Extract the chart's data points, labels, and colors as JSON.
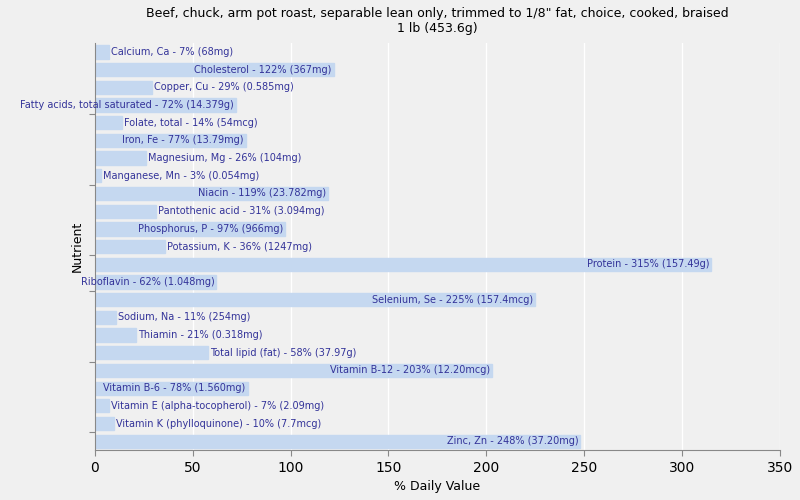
{
  "title": "Beef, chuck, arm pot roast, separable lean only, trimmed to 1/8\" fat, choice, cooked, braised\n1 lb (453.6g)",
  "xlabel": "% Daily Value",
  "ylabel": "Nutrient",
  "xlim": [
    0,
    350
  ],
  "xticks": [
    0,
    50,
    100,
    150,
    200,
    250,
    300,
    350
  ],
  "bar_color": "#c5d8f0",
  "background_color": "#f0f0f0",
  "grid_color": "#ffffff",
  "label_color": "#333399",
  "nutrients": [
    {
      "label": "Calcium, Ca - 7% (68mg)",
      "value": 7
    },
    {
      "label": "Cholesterol - 122% (367mg)",
      "value": 122
    },
    {
      "label": "Copper, Cu - 29% (0.585mg)",
      "value": 29
    },
    {
      "label": "Fatty acids, total saturated - 72% (14.379g)",
      "value": 72
    },
    {
      "label": "Folate, total - 14% (54mcg)",
      "value": 14
    },
    {
      "label": "Iron, Fe - 77% (13.79mg)",
      "value": 77
    },
    {
      "label": "Magnesium, Mg - 26% (104mg)",
      "value": 26
    },
    {
      "label": "Manganese, Mn - 3% (0.054mg)",
      "value": 3
    },
    {
      "label": "Niacin - 119% (23.782mg)",
      "value": 119
    },
    {
      "label": "Pantothenic acid - 31% (3.094mg)",
      "value": 31
    },
    {
      "label": "Phosphorus, P - 97% (966mg)",
      "value": 97
    },
    {
      "label": "Potassium, K - 36% (1247mg)",
      "value": 36
    },
    {
      "label": "Protein - 315% (157.49g)",
      "value": 315
    },
    {
      "label": "Riboflavin - 62% (1.048mg)",
      "value": 62
    },
    {
      "label": "Selenium, Se - 225% (157.4mcg)",
      "value": 225
    },
    {
      "label": "Sodium, Na - 11% (254mg)",
      "value": 11
    },
    {
      "label": "Thiamin - 21% (0.318mg)",
      "value": 21
    },
    {
      "label": "Total lipid (fat) - 58% (37.97g)",
      "value": 58
    },
    {
      "label": "Vitamin B-12 - 203% (12.20mcg)",
      "value": 203
    },
    {
      "label": "Vitamin B-6 - 78% (1.560mg)",
      "value": 78
    },
    {
      "label": "Vitamin E (alpha-tocopherol) - 7% (2.09mg)",
      "value": 7
    },
    {
      "label": "Vitamin K (phylloquinone) - 10% (7.7mcg)",
      "value": 10
    },
    {
      "label": "Zinc, Zn - 248% (37.20mg)",
      "value": 248
    }
  ],
  "tick_groups": [
    4,
    8,
    12,
    14,
    18,
    22
  ],
  "title_fontsize": 9,
  "label_fontsize": 7,
  "axis_fontsize": 9
}
